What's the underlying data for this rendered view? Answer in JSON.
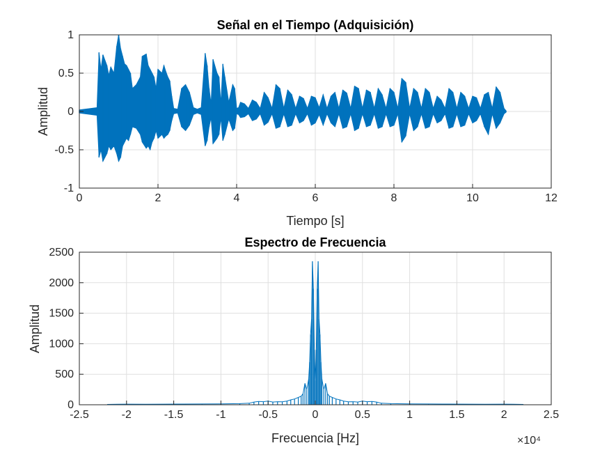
{
  "chart_data": [
    {
      "type": "line",
      "title": "Señal en el Tiempo (Adquisición)",
      "xlabel": "Tiempo [s]",
      "ylabel": "Amplitud",
      "xlim": [
        0,
        12
      ],
      "ylim": [
        -1,
        1
      ],
      "xticks": [
        "0",
        "2",
        "4",
        "6",
        "8",
        "10",
        "12"
      ],
      "yticks": [
        "-1",
        "-0.5",
        "0",
        "0.5",
        "1"
      ],
      "grid": true,
      "color": "#0072BD",
      "series": [
        {
          "x": [
            0,
            0.45,
            0.5,
            0.55,
            0.6,
            0.7,
            0.75,
            0.8,
            0.88,
            0.95,
            1.0,
            1.05,
            1.1,
            1.15,
            1.2,
            1.25,
            1.3,
            1.35,
            1.45,
            1.55,
            1.6,
            1.7,
            1.75,
            1.8,
            1.85,
            1.9,
            1.95,
            2.0,
            2.1,
            2.15,
            2.2,
            2.25,
            2.3,
            2.35,
            2.4,
            2.5,
            2.6,
            2.7,
            2.8,
            2.9,
            3.0,
            3.1,
            3.2,
            3.25,
            3.3,
            3.35,
            3.4,
            3.5,
            3.55,
            3.6,
            3.65,
            3.7,
            3.8,
            3.9,
            3.95,
            4.0,
            4.05,
            4.1,
            4.2,
            4.3,
            4.4,
            4.5,
            4.6,
            4.7,
            4.8,
            4.9,
            5.0,
            5.1,
            5.2,
            5.3,
            5.4,
            5.5,
            5.6,
            5.7,
            5.8,
            5.9,
            6.0,
            6.1,
            6.2,
            6.3,
            6.4,
            6.5,
            6.6,
            6.7,
            6.8,
            6.9,
            7.0,
            7.1,
            7.2,
            7.3,
            7.4,
            7.5,
            7.6,
            7.7,
            7.8,
            7.9,
            8.0,
            8.1,
            8.2,
            8.3,
            8.4,
            8.5,
            8.6,
            8.7,
            8.8,
            8.9,
            9.0,
            9.1,
            9.2,
            9.3,
            9.4,
            9.5,
            9.6,
            9.7,
            9.8,
            9.9,
            10.0,
            10.1,
            10.2,
            10.3,
            10.4,
            10.5,
            10.6,
            10.7,
            10.8,
            10.85
          ],
          "ymax": [
            0.02,
            0.05,
            0.77,
            0.55,
            0.74,
            0.6,
            0.47,
            0.58,
            0.5,
            0.85,
            1.0,
            0.82,
            0.72,
            0.62,
            0.6,
            0.55,
            0.5,
            0.3,
            0.35,
            0.45,
            0.72,
            0.75,
            0.6,
            0.55,
            0.5,
            0.45,
            0.3,
            0.55,
            0.5,
            0.6,
            0.52,
            0.45,
            0.4,
            0.2,
            0.04,
            0.03,
            0.3,
            0.35,
            0.25,
            0.05,
            0.03,
            0.05,
            0.76,
            0.6,
            0.3,
            0.1,
            0.68,
            0.5,
            0.45,
            0.1,
            0.62,
            0.45,
            0.12,
            0.35,
            0.3,
            0.04,
            0.05,
            0.12,
            0.1,
            0.04,
            0.15,
            0.12,
            0.04,
            0.25,
            0.18,
            0.04,
            0.35,
            0.3,
            0.04,
            0.28,
            0.22,
            0.04,
            0.2,
            0.17,
            0.04,
            0.2,
            0.18,
            0.05,
            0.22,
            0.04,
            0.2,
            0.25,
            0.04,
            0.28,
            0.24,
            0.04,
            0.33,
            0.3,
            0.04,
            0.28,
            0.25,
            0.04,
            0.3,
            0.22,
            0.04,
            0.3,
            0.25,
            0.04,
            0.43,
            0.38,
            0.04,
            0.3,
            0.25,
            0.04,
            0.3,
            0.25,
            0.04,
            0.2,
            0.15,
            0.04,
            0.3,
            0.25,
            0.04,
            0.25,
            0.2,
            0.04,
            0.2,
            0.18,
            0.04,
            0.22,
            0.25,
            0.04,
            0.32,
            0.25,
            0.04,
            0.01
          ],
          "ymin": [
            -0.02,
            -0.05,
            -0.6,
            -0.5,
            -0.65,
            -0.55,
            -0.45,
            -0.5,
            -0.45,
            -0.55,
            -0.65,
            -0.6,
            -0.45,
            -0.4,
            -0.35,
            -0.38,
            -0.3,
            -0.2,
            -0.22,
            -0.3,
            -0.4,
            -0.48,
            -0.45,
            -0.5,
            -0.4,
            -0.35,
            -0.25,
            -0.35,
            -0.3,
            -0.35,
            -0.32,
            -0.3,
            -0.25,
            -0.12,
            -0.03,
            -0.02,
            -0.2,
            -0.25,
            -0.18,
            -0.04,
            -0.02,
            -0.04,
            -0.45,
            -0.38,
            -0.2,
            -0.08,
            -0.42,
            -0.35,
            -0.3,
            -0.08,
            -0.38,
            -0.3,
            -0.1,
            -0.25,
            -0.22,
            -0.03,
            -0.04,
            -0.08,
            -0.07,
            -0.03,
            -0.12,
            -0.1,
            -0.03,
            -0.18,
            -0.14,
            -0.03,
            -0.22,
            -0.2,
            -0.03,
            -0.2,
            -0.18,
            -0.03,
            -0.15,
            -0.12,
            -0.03,
            -0.18,
            -0.15,
            -0.04,
            -0.18,
            -0.03,
            -0.15,
            -0.2,
            -0.03,
            -0.22,
            -0.2,
            -0.03,
            -0.25,
            -0.22,
            -0.03,
            -0.2,
            -0.18,
            -0.03,
            -0.22,
            -0.2,
            -0.03,
            -0.2,
            -0.18,
            -0.03,
            -0.4,
            -0.32,
            -0.03,
            -0.25,
            -0.2,
            -0.03,
            -0.22,
            -0.2,
            -0.03,
            -0.15,
            -0.12,
            -0.03,
            -0.22,
            -0.2,
            -0.03,
            -0.2,
            -0.18,
            -0.03,
            -0.15,
            -0.12,
            -0.03,
            -0.2,
            -0.3,
            -0.03,
            -0.22,
            -0.15,
            -0.03,
            -0.01
          ]
        }
      ]
    },
    {
      "type": "line",
      "title": "Espectro de Frecuencia",
      "xlabel": "Frecuencia [Hz]",
      "ylabel": "Amplitud",
      "xlim": [
        -25000,
        25000
      ],
      "ylim": [
        0,
        2500
      ],
      "xticks": [
        "-2.5",
        "-2",
        "-1.5",
        "-1",
        "-0.5",
        "0",
        "0.5",
        "1",
        "1.5",
        "2",
        "2.5"
      ],
      "yticks": [
        "0",
        "500",
        "1000",
        "1500",
        "2000",
        "2500"
      ],
      "x_exponent": "×10⁴",
      "grid": true,
      "color": "#0072BD",
      "series": [
        {
          "x": [
            -22050,
            -21000,
            -20000,
            -18000,
            -16000,
            -14000,
            -12000,
            -10000,
            -8000,
            -7000,
            -6500,
            -6000,
            -5500,
            -5000,
            -4500,
            -4000,
            -3500,
            -3000,
            -2600,
            -2200,
            -1800,
            -1500,
            -1300,
            -1100,
            -900,
            -700,
            -600,
            -500,
            -400,
            -300,
            -200,
            -100,
            0,
            100,
            200,
            300,
            400,
            500,
            600,
            700,
            900,
            1100,
            1300,
            1500,
            1800,
            2200,
            2600,
            3000,
            3500,
            4000,
            4500,
            5000,
            5500,
            6000,
            6500,
            7000,
            8000,
            10000,
            12000,
            14000,
            16000,
            18000,
            20000,
            21000,
            22050
          ],
          "y": [
            6,
            8,
            10,
            9,
            10,
            11,
            12,
            14,
            18,
            25,
            45,
            55,
            50,
            60,
            45,
            50,
            48,
            60,
            80,
            95,
            120,
            140,
            180,
            350,
            250,
            420,
            700,
            1150,
            1400,
            2350,
            1900,
            900,
            400,
            900,
            1900,
            2350,
            1400,
            1150,
            700,
            420,
            250,
            350,
            180,
            140,
            120,
            95,
            80,
            60,
            48,
            50,
            45,
            60,
            50,
            55,
            45,
            25,
            18,
            14,
            12,
            11,
            10,
            9,
            10,
            8,
            6
          ]
        }
      ]
    }
  ]
}
